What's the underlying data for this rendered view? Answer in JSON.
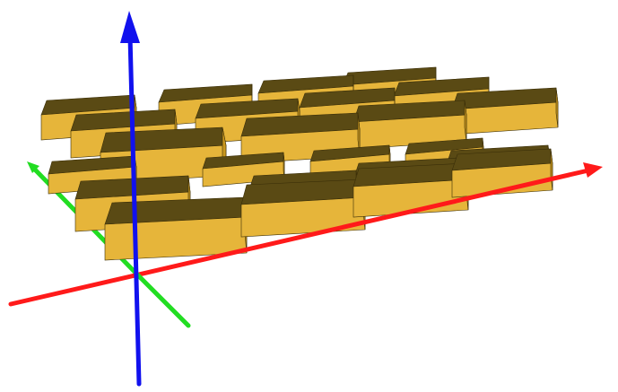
{
  "scene": {
    "background": "#ffffff",
    "box_colors": {
      "top": "#5a4a14",
      "front": "#e6b53a",
      "side": "#c9971e",
      "edge": "#3a2e08"
    },
    "axes": [
      {
        "name": "x",
        "color": "#ff1a1a"
      },
      {
        "name": "y",
        "color": "#22dd22"
      },
      {
        "name": "z",
        "color": "#1111ee"
      }
    ],
    "layers": [
      {
        "level": "lower",
        "rows": 3,
        "cols": 4
      },
      {
        "level": "upper",
        "rows": 3,
        "cols": 4
      }
    ]
  }
}
